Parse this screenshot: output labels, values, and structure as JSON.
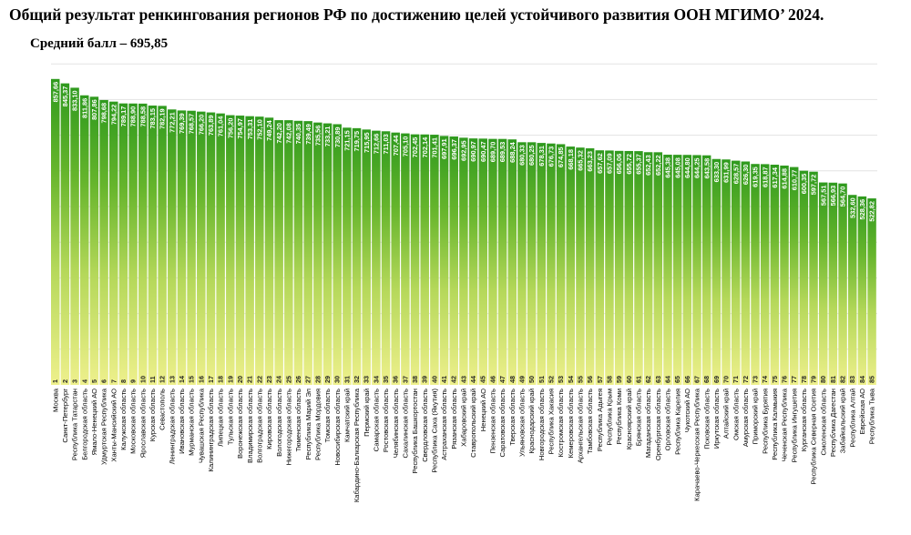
{
  "title": "Общий результат ренкингования регионов РФ по достижению целей устойчивого развития ООН МГИМО’ 2024.",
  "subtitle": "Средний балл – 695,85",
  "colors": {
    "bar_top": "#2f9a1e",
    "bar_bottom": "#eef08c",
    "grid": "#e3e3e3"
  },
  "chart_data": {
    "type": "bar",
    "title": "Общий результат ренкингования регионов РФ по достижению целей устойчивого развития ООН МГИМО’ 2024.",
    "subtitle": "Средний балл – 695,85",
    "xlabel": "",
    "ylabel": "",
    "ylim": [
      0,
      900
    ],
    "grid": true,
    "legend": "none",
    "ranks": [
      "1",
      "2",
      "3",
      "4",
      "5",
      "6",
      "7",
      "8",
      "9",
      "10",
      "11",
      "12",
      "13",
      "14",
      "15",
      "16",
      "17",
      "18",
      "19",
      "20",
      "21",
      "22",
      "23",
      "24",
      "25",
      "26",
      "27",
      "28",
      "29",
      "30",
      "31",
      "32",
      "33",
      "34",
      "35",
      "36",
      "37",
      "38",
      "39",
      "40",
      "41",
      "42",
      "43",
      "44",
      "45",
      "46",
      "47",
      "48",
      "49",
      "50",
      "51",
      "52",
      "53",
      "54",
      "55",
      "56",
      "57",
      "58",
      "59",
      "60",
      "61",
      "62",
      "63",
      "64",
      "65",
      "66",
      "67",
      "68",
      "69",
      "70",
      "71",
      "72",
      "73",
      "74",
      "75",
      "76",
      "77",
      "78",
      "79",
      "80",
      "81",
      "82",
      "83",
      "84",
      "85"
    ],
    "categories": [
      "Москва",
      "Санкт-Петербург",
      "Республика Татарстан",
      "Белгородская область",
      "Ямало-Ненецкий АО",
      "Удмуртская Республика",
      "Ханты-Мансийский АО",
      "Калужская область",
      "Московская область",
      "Ярославская область",
      "Курская область",
      "Севастополь",
      "Ленинградская область",
      "Ивановская область",
      "Мурманская область",
      "Чувашская Республика",
      "Калининградская область",
      "Липецкая область",
      "Тульская область",
      "Воронежская область",
      "Владимирская область",
      "Волгоградская область",
      "Кировская область",
      "Вологодская область",
      "Нижегородская область",
      "Тюменская область",
      "Республика Марий Эл",
      "Республика Мордовия",
      "Томская область",
      "Новосибирская область",
      "Камчатский край",
      "Кабардино-Балкарская Республика",
      "Пермский край",
      "Самарская область",
      "Ростовская область",
      "Челябинская область",
      "Сахалинская область",
      "Республика Башкортостан",
      "Свердловская область",
      "Республика Саха (Якутия)",
      "Астраханская область",
      "Рязанская область",
      "Хабаровский край",
      "Ставропольский край",
      "Ненецкий АО",
      "Пензенская область",
      "Саратовская область",
      "Тверская область",
      "Ульяновская область",
      "Краснодарский край",
      "Новгородская область",
      "Республика Хакасия",
      "Костромская область",
      "Кемеровская область",
      "Архангельская область",
      "Тамбовская область",
      "Республика Адыгея",
      "Республика Крым",
      "Республика Коми",
      "Красноярский край",
      "Брянская область",
      "Магаданская область",
      "Оренбургская область",
      "Орловская область",
      "Республика Карелия",
      "Чукотский АО",
      "Карачаево-Черкесская Республика",
      "Псковская область",
      "Иркутская область",
      "Алтайский край",
      "Омская область",
      "Амурская область",
      "Приморский край",
      "Республика Бурятия",
      "Республика Калмыкия",
      "Чеченская Республика",
      "Республика Ингушетия",
      "Курганская область",
      "Республика Северная Осетия",
      "Смоленская область",
      "Республика Дагестан",
      "Забайкальский край",
      "Республика Алтай",
      "Еврейская АО",
      "Республика Тыва"
    ],
    "values": [
      857.66,
      845.37,
      833.1,
      811.86,
      807.86,
      798.68,
      794.22,
      789.17,
      788.9,
      788.58,
      783.15,
      782.19,
      772.21,
      769.39,
      768.57,
      766.2,
      763.89,
      761.04,
      756.2,
      754.97,
      753.31,
      752.1,
      749.24,
      742.2,
      742.08,
      740.35,
      739.49,
      735.56,
      733.21,
      730.89,
      721.15,
      719.75,
      715.95,
      712.66,
      711.03,
      707.44,
      705.1,
      702.45,
      702.14,
      701.41,
      697.91,
      696.37,
      692.95,
      690.97,
      690.47,
      689.7,
      689.53,
      688.24,
      680.33,
      680.25,
      678.31,
      676.73,
      674.85,
      668.18,
      665.32,
      663.23,
      657.62,
      657.09,
      656.06,
      655.72,
      655.37,
      652.43,
      652.22,
      645.38,
      645.08,
      644.8,
      644.25,
      643.58,
      633.3,
      631.99,
      628.57,
      626.3,
      619.35,
      618.87,
      617.34,
      614.88,
      610.77,
      600.35,
      597.72,
      567.51,
      566.93,
      564.7,
      532.6,
      528.36,
      522.82
    ],
    "labels": [
      "857,66",
      "845,37",
      "833,10",
      "811,86",
      "807,86",
      "798,68",
      "794,22",
      "789,17",
      "788,90",
      "788,58",
      "783,15",
      "782,19",
      "772,21",
      "769,39",
      "768,57",
      "766,20",
      "763,89",
      "761,04",
      "756,20",
      "754,97",
      "753,31",
      "752,10",
      "749,24",
      "742,20",
      "742,08",
      "740,35",
      "739,49",
      "735,56",
      "733,21",
      "730,89",
      "721,15",
      "719,75",
      "715,95",
      "712,66",
      "711,03",
      "707,44",
      "705,10",
      "702,45",
      "702,14",
      "701,41",
      "697,91",
      "696,37",
      "692,95",
      "690,97",
      "690,47",
      "689,70",
      "689,53",
      "688,24",
      "680,33",
      "680,25",
      "678,31",
      "676,73",
      "674,85",
      "668,18",
      "665,32",
      "663,23",
      "657,62",
      "657,09",
      "656,06",
      "655,72",
      "655,37",
      "652,43",
      "652,22",
      "645,38",
      "645,08",
      "644,80",
      "644,25",
      "643,58",
      "633,30",
      "631,99",
      "628,57",
      "626,30",
      "619,35",
      "618,87",
      "617,34",
      "614,88",
      "610,77",
      "600,35",
      "597,72",
      "567,51",
      "566,93",
      "564,70",
      "532,60",
      "528,36",
      "522,82"
    ]
  }
}
